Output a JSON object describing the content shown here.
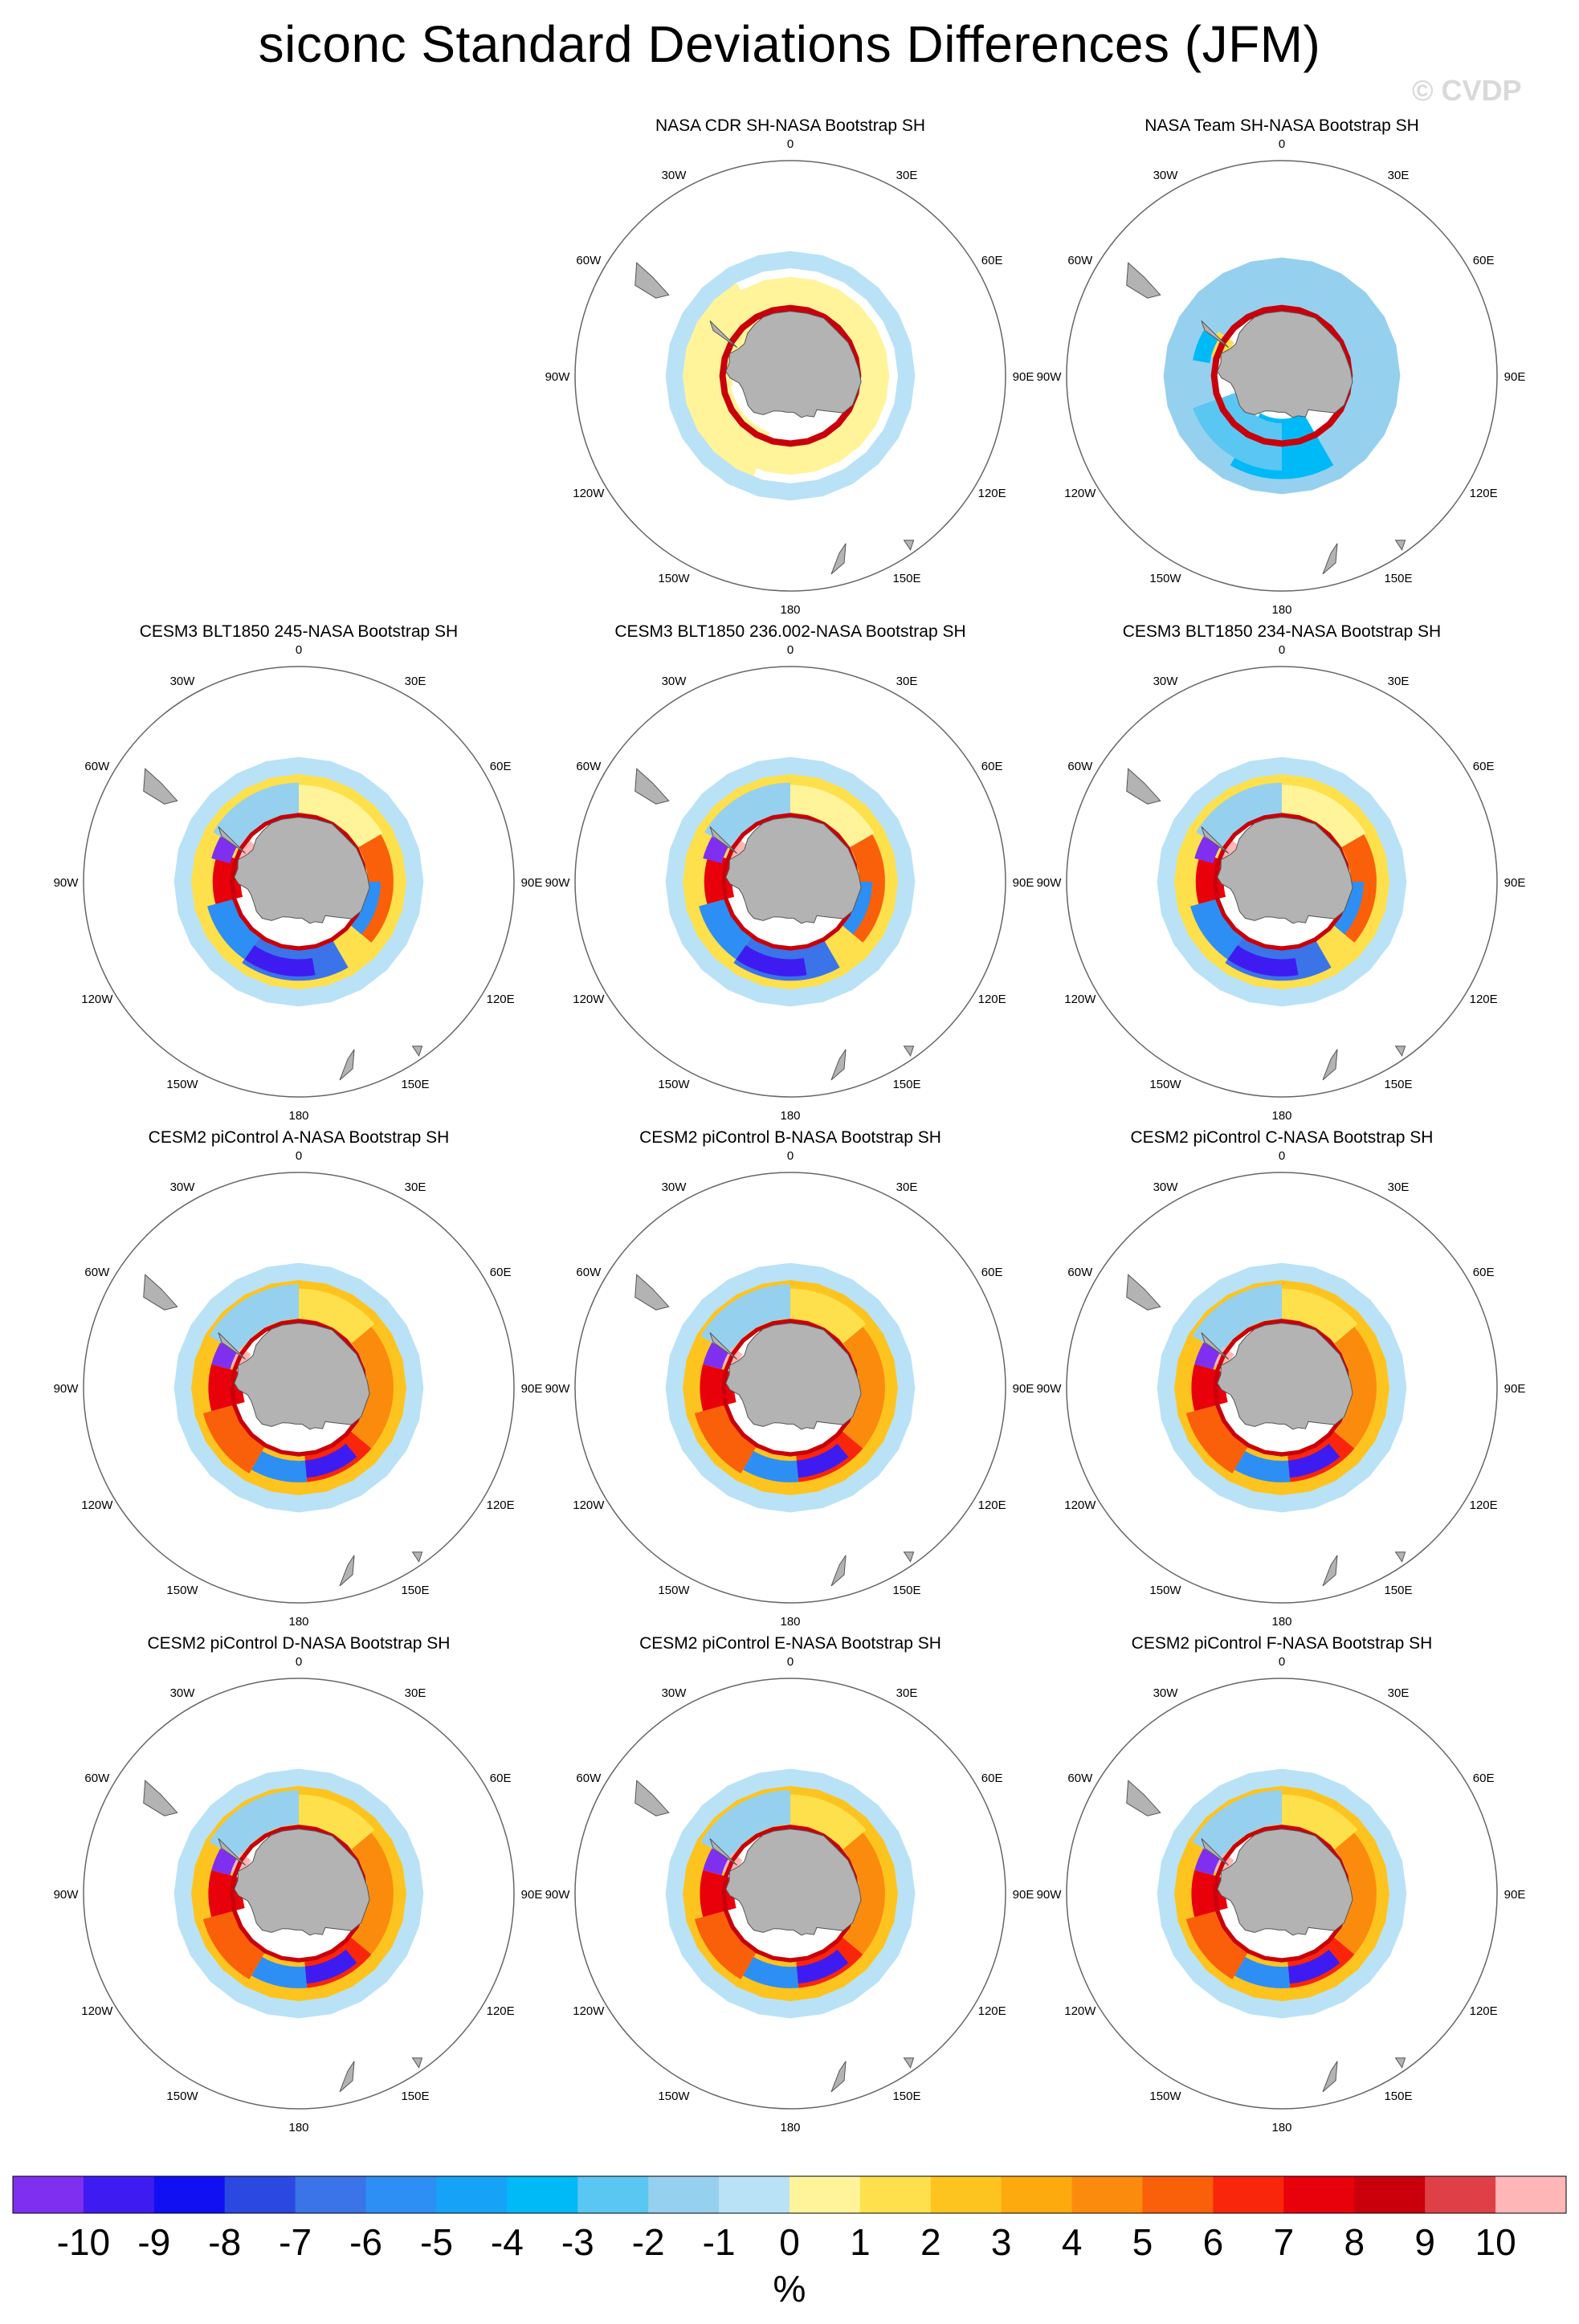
{
  "title": "siconc Standard Deviations Differences (JFM)",
  "watermark": "© CVDP",
  "lon_labels": [
    "0",
    "30E",
    "60E",
    "90E",
    "120E",
    "150E",
    "180",
    "150W",
    "120W",
    "90W",
    "60W",
    "30W"
  ],
  "panels": [
    {
      "title": "NASA CDR SH-NASA Bootstrap SH",
      "pattern": "cdr"
    },
    {
      "title": "NASA Team SH-NASA Bootstrap SH",
      "pattern": "team"
    },
    {
      "title": "CESM3 BLT1850 245-NASA Bootstrap SH",
      "pattern": "cesm3"
    },
    {
      "title": "CESM3 BLT1850 236.002-NASA Bootstrap SH",
      "pattern": "cesm3"
    },
    {
      "title": "CESM3 BLT1850 234-NASA Bootstrap SH",
      "pattern": "cesm3"
    },
    {
      "title": "CESM2 piControl A-NASA Bootstrap SH",
      "pattern": "cesm2"
    },
    {
      "title": "CESM2 piControl B-NASA Bootstrap SH",
      "pattern": "cesm2"
    },
    {
      "title": "CESM2 piControl C-NASA Bootstrap SH",
      "pattern": "cesm2"
    },
    {
      "title": "CESM2 piControl D-NASA Bootstrap SH",
      "pattern": "cesm2"
    },
    {
      "title": "CESM2 piControl E-NASA Bootstrap SH",
      "pattern": "cesm2"
    },
    {
      "title": "CESM2 piControl F-NASA Bootstrap SH",
      "pattern": "cesm2"
    }
  ],
  "colorbar": {
    "colors": [
      "#7f2ff0",
      "#3e1cf1",
      "#1010f2",
      "#2b49e0",
      "#3a74e8",
      "#2d8ff3",
      "#16a3f7",
      "#00baf8",
      "#5ac6f2",
      "#96d0ef",
      "#b9e2f7",
      "#fff49a",
      "#fde04b",
      "#fdc41f",
      "#fcaa0d",
      "#fb8b0d",
      "#fa5f0a",
      "#f9260b",
      "#e8000b",
      "#c9000b",
      "#df4047",
      "#ffb6b6"
    ],
    "labels": [
      "-10",
      "-9",
      "-8",
      "-7",
      "-6",
      "-5",
      "-4",
      "-3",
      "-2",
      "-1",
      "0",
      "1",
      "2",
      "3",
      "4",
      "5",
      "6",
      "7",
      "8",
      "9",
      "10"
    ],
    "unit": "%"
  },
  "colors": {
    "land": "#b3b3b3",
    "circle": "#666666"
  }
}
